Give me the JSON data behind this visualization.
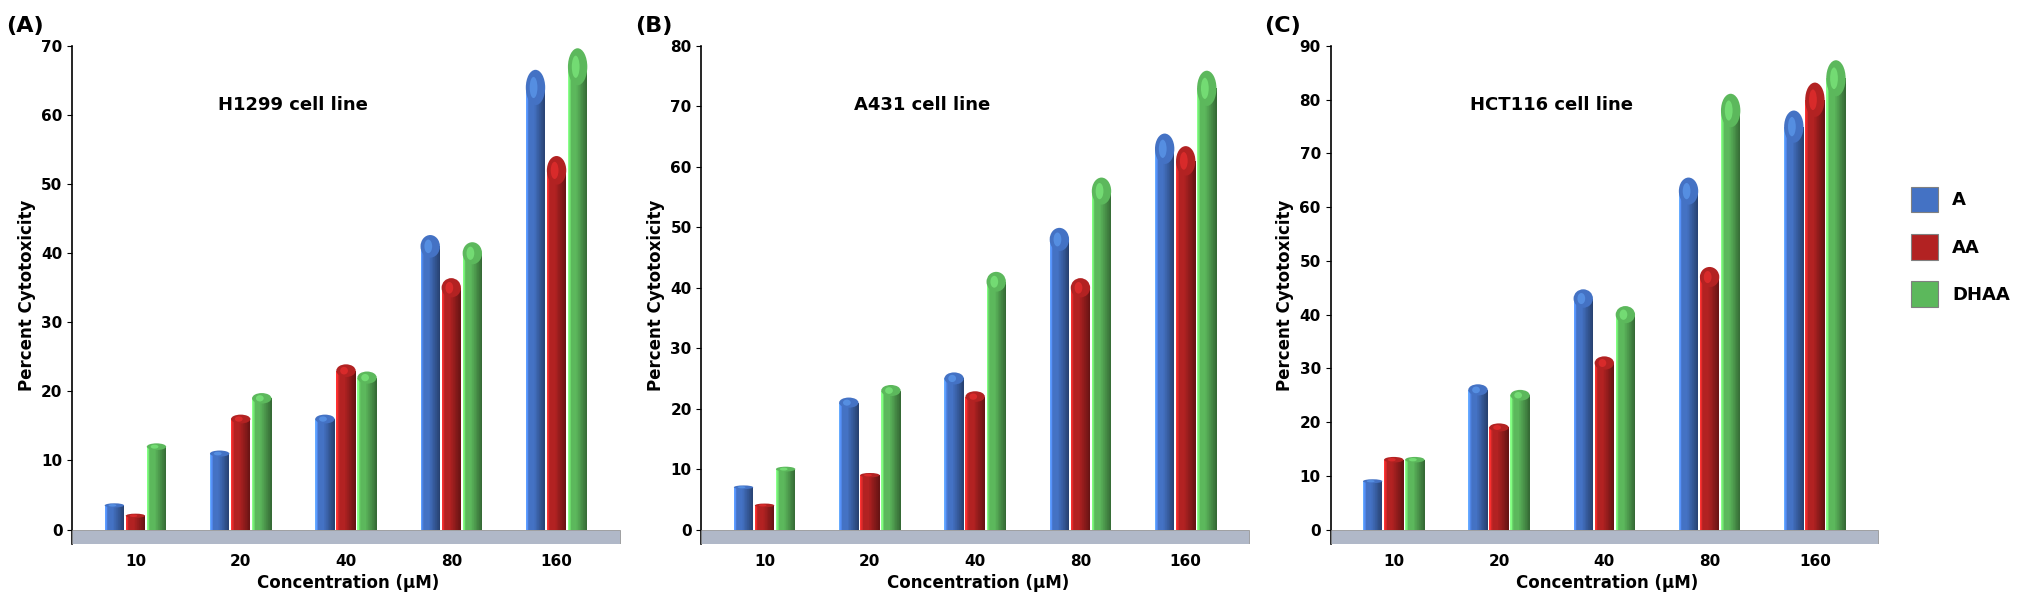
{
  "charts": [
    {
      "label": "(A)",
      "title": "H1299 cell line",
      "ylim": [
        0,
        70
      ],
      "yticks": [
        0,
        10,
        20,
        30,
        40,
        50,
        60,
        70
      ],
      "A": [
        3.5,
        11,
        16,
        41,
        64
      ],
      "AA": [
        2,
        16,
        23,
        35,
        52
      ],
      "DHAA": [
        12,
        19,
        22,
        40,
        67
      ]
    },
    {
      "label": "(B)",
      "title": "A431 cell line",
      "ylim": [
        0,
        80
      ],
      "yticks": [
        0,
        10,
        20,
        30,
        40,
        50,
        60,
        70,
        80
      ],
      "A": [
        7,
        21,
        25,
        48,
        63
      ],
      "AA": [
        4,
        9,
        22,
        40,
        61
      ],
      "DHAA": [
        10,
        23,
        41,
        56,
        73
      ]
    },
    {
      "label": "(C)",
      "title": "HCT116 cell line",
      "ylim": [
        0,
        90
      ],
      "yticks": [
        0,
        10,
        20,
        30,
        40,
        50,
        60,
        70,
        80,
        90
      ],
      "A": [
        9,
        26,
        43,
        63,
        75
      ],
      "AA": [
        13,
        19,
        31,
        47,
        80
      ],
      "DHAA": [
        13,
        25,
        40,
        78,
        84
      ]
    }
  ],
  "concentrations": [
    "10",
    "20",
    "40",
    "80",
    "160"
  ],
  "xlabel": "Concentration (μM)",
  "ylabel": "Percent Cytotoxicity",
  "color_A": "#4472C4",
  "color_AA": "#B22222",
  "color_DHAA": "#5CB85C",
  "bar_width": 0.2,
  "title_fontsize": 13,
  "label_fontsize": 12,
  "tick_fontsize": 11,
  "legend_fontsize": 13
}
